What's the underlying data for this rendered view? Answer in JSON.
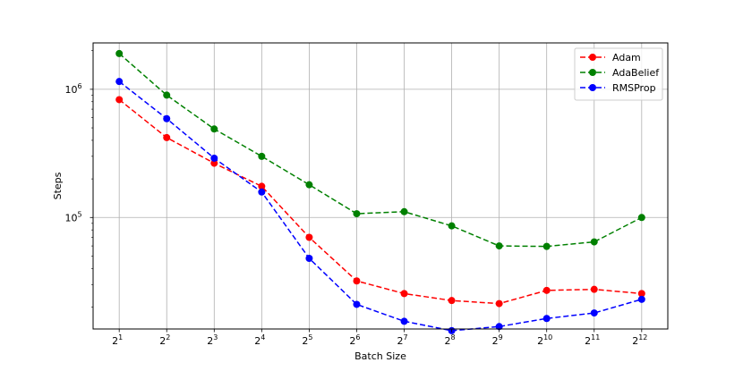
{
  "chart_data": {
    "type": "line",
    "xlabel": "Batch Size",
    "ylabel": "Steps",
    "x_tick_base": "2",
    "x": [
      1,
      2,
      3,
      4,
      5,
      6,
      7,
      8,
      9,
      10,
      11,
      12
    ],
    "y_scale": "log",
    "ylim": [
      13500,
      2300000
    ],
    "y_ticks": [
      {
        "base": "10",
        "exp": "5",
        "value": 100000
      },
      {
        "base": "10",
        "exp": "6",
        "value": 1000000
      }
    ],
    "grid": true,
    "legend_position": "top-right",
    "series": [
      {
        "name": "Adam",
        "color": "#ff0000",
        "values": [
          830000,
          420000,
          265000,
          175000,
          70000,
          32000,
          25500,
          22500,
          21300,
          27000,
          27500,
          25500
        ]
      },
      {
        "name": "AdaBelief",
        "color": "#008000",
        "values": [
          1900000,
          900000,
          490000,
          300000,
          180000,
          107000,
          111000,
          86000,
          60000,
          59500,
          64500,
          100000
        ]
      },
      {
        "name": "RMSProp",
        "color": "#0000ff",
        "values": [
          1150000,
          590000,
          290000,
          158000,
          48000,
          21000,
          15500,
          13100,
          14100,
          16300,
          18000,
          23000
        ]
      }
    ]
  }
}
